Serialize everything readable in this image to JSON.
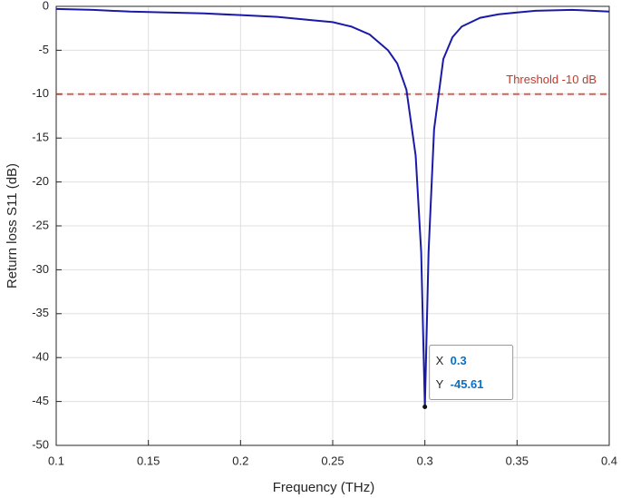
{
  "chart_data": {
    "type": "line",
    "x_label": "Frequency (THz)",
    "y_label": "Return loss S11 (dB)",
    "x": [
      0.1,
      0.12,
      0.14,
      0.16,
      0.18,
      0.2,
      0.22,
      0.24,
      0.25,
      0.26,
      0.27,
      0.28,
      0.285,
      0.29,
      0.295,
      0.298,
      0.3,
      0.302,
      0.305,
      0.31,
      0.315,
      0.32,
      0.33,
      0.34,
      0.35,
      0.36,
      0.38,
      0.4
    ],
    "values": [
      -0.3,
      -0.4,
      -0.6,
      -0.7,
      -0.8,
      -1.0,
      -1.2,
      -1.6,
      -1.8,
      -2.3,
      -3.2,
      -5,
      -6.5,
      -9.5,
      -17,
      -28,
      -45.61,
      -28,
      -14,
      -6,
      -3.5,
      -2.3,
      -1.3,
      -0.9,
      -0.7,
      -0.5,
      -0.4,
      -0.6
    ],
    "color": "#1a1aa8",
    "xlim": [
      0.1,
      0.4
    ],
    "xticks": [
      0.1,
      0.15,
      0.2,
      0.25,
      0.3,
      0.35,
      0.4
    ],
    "ylim": [
      -50,
      0
    ],
    "yticks": [
      0,
      -5,
      -10,
      -15,
      -20,
      -25,
      -30,
      -35,
      -40,
      -45,
      -50
    ],
    "grid": true,
    "threshold": {
      "value": -10,
      "label": "Threshold -10 dB",
      "color": "#c0392b"
    },
    "datatip": {
      "x_label": "X",
      "x": 0.3,
      "y_label": "Y",
      "y": -45.61
    }
  }
}
